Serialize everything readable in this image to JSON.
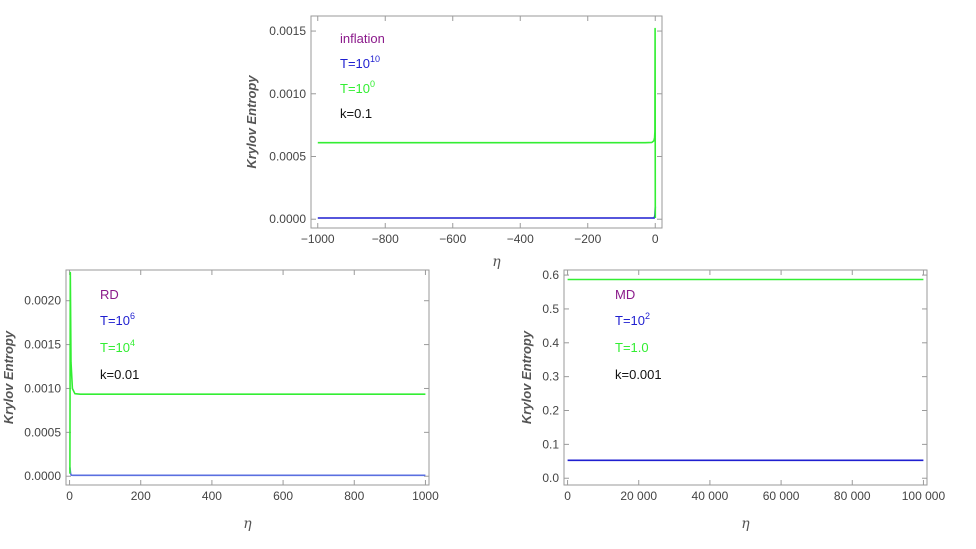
{
  "chart_data": [
    {
      "type": "line",
      "id": "inflation",
      "ylabel": "Krylov Entropy",
      "xlabel": "η",
      "xlim": [
        -1020,
        20
      ],
      "ylim": [
        -7e-05,
        0.00162
      ],
      "xticks": [
        -1000,
        -800,
        -600,
        -400,
        -200,
        0
      ],
      "xtick_labels": [
        "−1000",
        "−800",
        "−600",
        "−400",
        "−200",
        "0"
      ],
      "yticks": [
        0,
        0.0005,
        0.001,
        0.0015
      ],
      "ytick_labels": [
        "0.0000",
        "0.0005",
        "0.0010",
        "0.0015"
      ],
      "series": [
        {
          "color": "#1f1fd0",
          "x": [
            -1000,
            -3,
            -1,
            0
          ],
          "y": [
            1e-05,
            1e-05,
            3e-05,
            0.0001
          ]
        },
        {
          "color": "#33ee33",
          "x": [
            -1000,
            -30,
            -10,
            -4,
            -2,
            -1,
            -0.5,
            0
          ],
          "y": [
            0.00061,
            0.00061,
            0.000612,
            0.000625,
            0.00065,
            0.0007,
            0.00152,
            1e-05
          ]
        }
      ],
      "annotations": [
        {
          "text": "inflation",
          "color": "#8b1a8b"
        },
        {
          "text": "T=10",
          "sup": "10",
          "color": "#1f1fd0"
        },
        {
          "text": "T=10",
          "sup": "0",
          "color": "#33ee33"
        },
        {
          "text": "k=0.1",
          "color": "#111111"
        }
      ],
      "grid": false
    },
    {
      "type": "line",
      "id": "rd",
      "ylabel": "Krylov Entropy",
      "xlabel": "η",
      "xlim": [
        -10,
        1010
      ],
      "ylim": [
        -0.0001,
        0.00235
      ],
      "xticks": [
        0,
        200,
        400,
        600,
        800,
        1000
      ],
      "xtick_labels": [
        "0",
        "200",
        "400",
        "600",
        "800",
        "1000"
      ],
      "yticks": [
        0,
        0.0005,
        0.001,
        0.0015,
        0.002
      ],
      "ytick_labels": [
        "0.0000",
        "0.0005",
        "0.0010",
        "0.0015",
        "0.0020"
      ],
      "series": [
        {
          "color": "#5a6fe0",
          "x": [
            1,
            3,
            5,
            10,
            1000
          ],
          "y": [
            0.0001,
            3e-05,
            1.2e-05,
            1e-05,
            1e-05
          ]
        },
        {
          "color": "#33ee33",
          "x": [
            1,
            2,
            4,
            8,
            15,
            30,
            1000
          ],
          "y": [
            3e-05,
            0.00232,
            0.0013,
            0.001,
            0.00094,
            0.000935,
            0.000935
          ]
        }
      ],
      "annotations": [
        {
          "text": "RD",
          "color": "#8b1a8b"
        },
        {
          "text": "T=10",
          "sup": "6",
          "color": "#1f1fd0"
        },
        {
          "text": "T=10",
          "sup": "4",
          "color": "#33ee33"
        },
        {
          "text": "k=0.01",
          "color": "#111111"
        }
      ],
      "grid": false
    },
    {
      "type": "line",
      "id": "md",
      "ylabel": "Krylov Entropy",
      "xlabel": "η",
      "xlim": [
        -1000,
        101000
      ],
      "ylim": [
        -0.02,
        0.615
      ],
      "xticks": [
        0,
        20000,
        40000,
        60000,
        80000,
        100000
      ],
      "xtick_labels": [
        "0",
        "20 000",
        "40 000",
        "60 000",
        "80 000",
        "100 000"
      ],
      "yticks": [
        0,
        0.1,
        0.2,
        0.3,
        0.4,
        0.5,
        0.6
      ],
      "ytick_labels": [
        "0.0",
        "0.1",
        "0.2",
        "0.3",
        "0.4",
        "0.5",
        "0.6"
      ],
      "series": [
        {
          "color": "#1f1fd0",
          "x": [
            0,
            100000
          ],
          "y": [
            0.053,
            0.053
          ]
        },
        {
          "color": "#33ee33",
          "x": [
            0,
            100000
          ],
          "y": [
            0.587,
            0.587
          ]
        }
      ],
      "annotations": [
        {
          "text": "MD",
          "color": "#8b1a8b"
        },
        {
          "text": "T=10",
          "sup": "2",
          "color": "#1f1fd0"
        },
        {
          "text": "T=1.0",
          "color": "#33ee33"
        },
        {
          "text": "k=0.001",
          "color": "#111111"
        }
      ],
      "grid": false
    }
  ]
}
